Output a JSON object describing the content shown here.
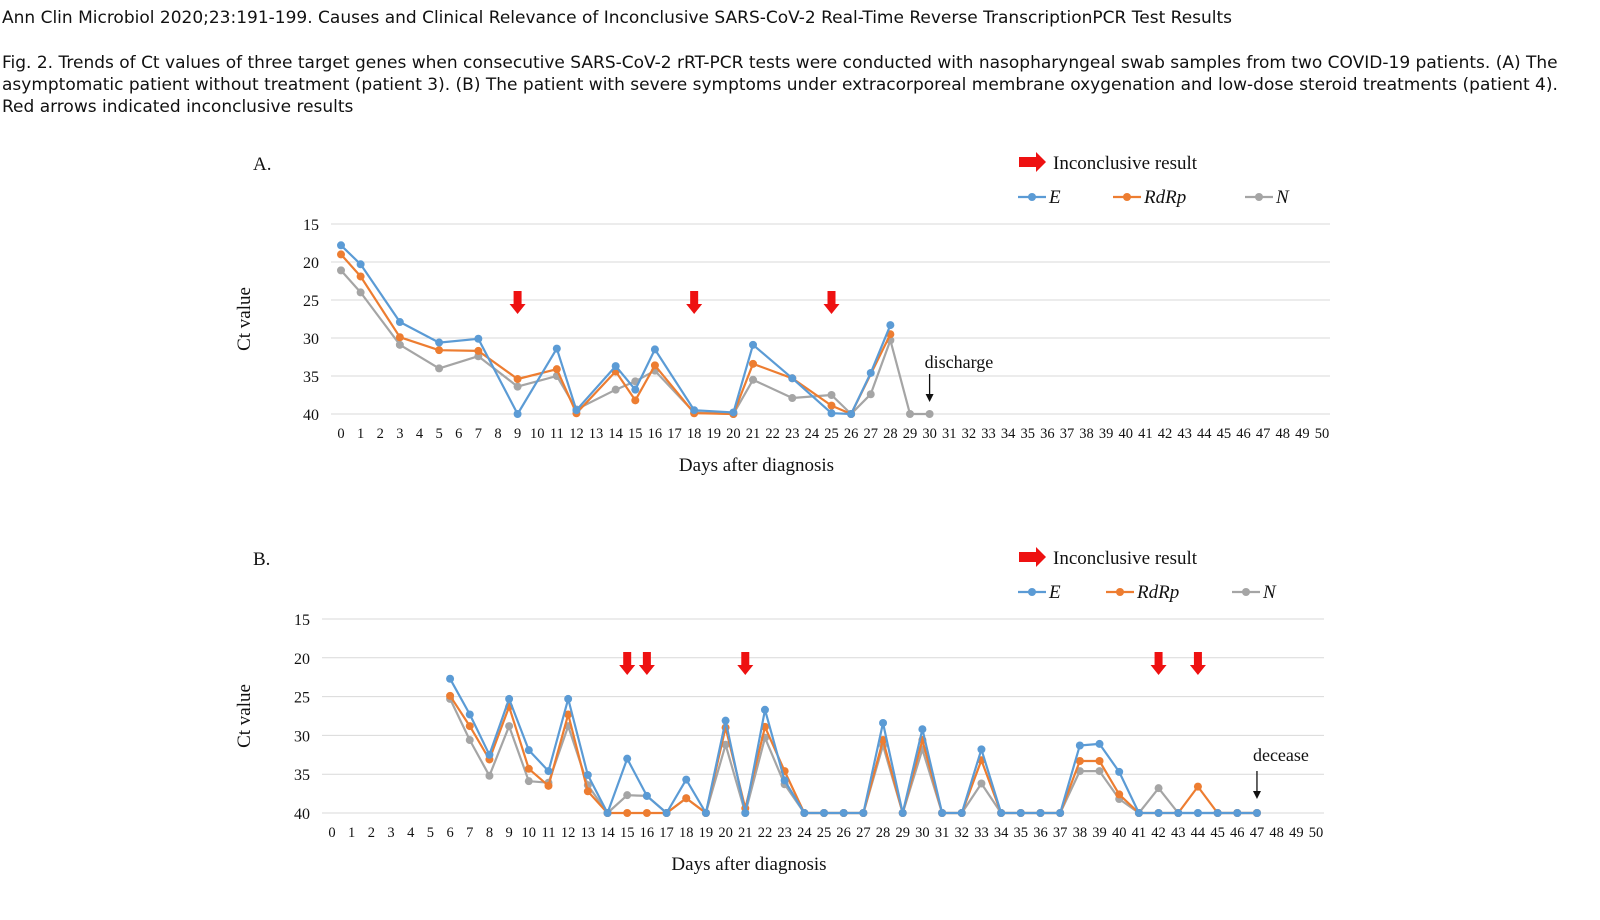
{
  "header": {
    "source": "Ann Clin Microbiol 2020;23:191-199. Causes and Clinical Relevance of Inconclusive SARS-CoV-2 Real-Time Reverse TranscriptionPCR Test Results",
    "caption": "Fig. 2. Trends of Ct values of three target genes when consecutive SARS-CoV-2 rRT-PCR tests were conducted with nasopharyngeal swab samples from two COVID-19 patients. (A) The asymptomatic patient without treatment (patient 3). (B) The patient with severe symptoms under extracorporeal membrane oxygenation and low-dose steroid treatments (patient 4). Red arrows indicated inconclusive results"
  },
  "colors": {
    "E": "#5b9bd5",
    "RdRp": "#ed7d31",
    "N": "#a5a5a5",
    "arrow": "#ee1111",
    "grid": "#d9d9d9"
  },
  "chart_data": [
    {
      "type": "line",
      "panel_label": "A.",
      "ylabel": "Ct value",
      "xlabel": "Days after diagnosis",
      "y_ticks": [
        15,
        20,
        25,
        30,
        35,
        40
      ],
      "ylim": [
        15,
        40
      ],
      "y_inverted": true,
      "x_categories": [
        0,
        1,
        2,
        3,
        4,
        5,
        6,
        7,
        8,
        9,
        10,
        11,
        12,
        13,
        14,
        15,
        16,
        17,
        18,
        19,
        20,
        21,
        22,
        23,
        24,
        25,
        26,
        27,
        28,
        29,
        30,
        31,
        32,
        33,
        34,
        35,
        36,
        37,
        38,
        39,
        40,
        41,
        42,
        43,
        44,
        45,
        46,
        47,
        48,
        49,
        50
      ],
      "grid": true,
      "legend": {
        "position": "top-right",
        "inconclusive_label": "Inconclusive result"
      },
      "series": [
        {
          "name": "E",
          "x": [
            0,
            1,
            3,
            5,
            7,
            9,
            11,
            12,
            14,
            15,
            16,
            18,
            20,
            21,
            23,
            25,
            26,
            27,
            28
          ],
          "y": [
            17.8,
            20.3,
            27.9,
            30.6,
            30.1,
            40,
            31.4,
            39.5,
            33.7,
            36.8,
            31.5,
            39.5,
            39.8,
            30.9,
            35.3,
            39.9,
            40,
            34.6,
            28.3
          ]
        },
        {
          "name": "RdRp",
          "x": [
            0,
            1,
            3,
            5,
            7,
            9,
            11,
            12,
            14,
            15,
            16,
            18,
            20,
            21,
            23,
            25,
            26,
            28
          ],
          "y": [
            19,
            21.9,
            29.9,
            31.6,
            31.7,
            35.4,
            34.1,
            39.9,
            34.4,
            38.2,
            33.6,
            39.9,
            40,
            33.4,
            35.3,
            38.9,
            40,
            29.5
          ]
        },
        {
          "name": "N",
          "x": [
            0,
            1,
            3,
            5,
            7,
            9,
            11,
            12,
            14,
            15,
            16,
            18,
            20,
            21,
            23,
            25,
            26,
            27,
            28,
            29,
            30
          ],
          "y": [
            21.1,
            24,
            30.9,
            34,
            32.4,
            36.4,
            35,
            39.4,
            36.8,
            35.7,
            34.3,
            39.8,
            40,
            35.5,
            37.9,
            37.5,
            40,
            37.4,
            30.3,
            40,
            40
          ]
        }
      ],
      "inconclusive_days": [
        9,
        18,
        25
      ],
      "annotation": {
        "text": "discharge",
        "day": 30
      }
    },
    {
      "type": "line",
      "panel_label": "B.",
      "ylabel": "Ct value",
      "xlabel": "Days after diagnosis",
      "y_ticks": [
        15,
        20,
        25,
        30,
        35,
        40
      ],
      "ylim": [
        15,
        40
      ],
      "y_inverted": true,
      "x_categories": [
        0,
        1,
        2,
        3,
        4,
        5,
        6,
        7,
        8,
        9,
        10,
        11,
        12,
        13,
        14,
        15,
        16,
        17,
        18,
        19,
        20,
        21,
        22,
        23,
        24,
        25,
        26,
        27,
        28,
        29,
        30,
        31,
        32,
        33,
        34,
        35,
        36,
        37,
        38,
        39,
        40,
        41,
        42,
        43,
        44,
        45,
        46,
        47,
        48,
        49,
        50
      ],
      "grid": true,
      "legend": {
        "position": "top-right",
        "inconclusive_label": "Inconclusive result"
      },
      "series": [
        {
          "name": "E",
          "x": [
            6,
            7,
            8,
            9,
            10,
            11,
            12,
            13,
            14,
            15,
            16,
            17,
            18,
            19,
            20,
            21,
            22,
            23,
            24,
            25,
            26,
            27,
            28,
            29,
            30,
            31,
            32,
            33,
            34,
            35,
            36,
            37,
            38,
            39,
            40,
            41,
            42,
            43,
            44,
            45,
            46,
            47
          ],
          "y": [
            22.7,
            27.3,
            32.5,
            25.3,
            31.9,
            34.6,
            25.3,
            35.1,
            40,
            33,
            37.8,
            40,
            35.7,
            40,
            28.1,
            40,
            26.7,
            35.8,
            40,
            40,
            40,
            40,
            28.4,
            40,
            29.2,
            40,
            40,
            31.8,
            40,
            40,
            40,
            40,
            31.3,
            31.1,
            34.7,
            40,
            40,
            40,
            40,
            40,
            40,
            40
          ]
        },
        {
          "name": "RdRp",
          "x": [
            6,
            7,
            8,
            9,
            10,
            11,
            12,
            13,
            14,
            15,
            16,
            17,
            18,
            19,
            20,
            21,
            22,
            23,
            24,
            25,
            26,
            27,
            28,
            29,
            30,
            31,
            32,
            33,
            34,
            35,
            36,
            37,
            38,
            39,
            40,
            41,
            42,
            43,
            44,
            45,
            46,
            47
          ],
          "y": [
            24.9,
            28.8,
            33.1,
            26.3,
            34.3,
            36.5,
            27.3,
            37.2,
            40,
            40,
            40,
            40,
            38.1,
            40,
            29,
            39.4,
            28.9,
            34.6,
            40,
            40,
            40,
            40,
            30.6,
            40,
            30.6,
            40,
            40,
            33.2,
            40,
            40,
            40,
            40,
            33.3,
            33.3,
            37.6,
            40,
            40,
            40,
            36.6,
            40,
            40,
            40
          ]
        },
        {
          "name": "N",
          "x": [
            6,
            7,
            8,
            9,
            10,
            11,
            12,
            13,
            14,
            15,
            16,
            17,
            18,
            19,
            20,
            21,
            22,
            23,
            24,
            25,
            26,
            27,
            28,
            29,
            30,
            31,
            32,
            33,
            34,
            35,
            36,
            37,
            38,
            39,
            40,
            41,
            42,
            43,
            44,
            45,
            46,
            47
          ],
          "y": [
            25.3,
            30.6,
            35.2,
            28.8,
            35.9,
            36.1,
            28.8,
            36.4,
            40,
            37.7,
            37.8,
            40,
            38.1,
            40,
            31.2,
            40,
            30.3,
            36.3,
            40,
            40,
            40,
            40,
            31.3,
            40,
            31.8,
            40,
            40,
            36.2,
            40,
            40,
            40,
            40,
            34.6,
            34.6,
            38.2,
            40,
            36.8,
            40,
            40,
            40,
            40,
            40
          ]
        }
      ],
      "inconclusive_days": [
        15,
        16,
        21,
        42,
        44
      ],
      "annotation": {
        "text": "decease",
        "day": 47
      }
    }
  ]
}
